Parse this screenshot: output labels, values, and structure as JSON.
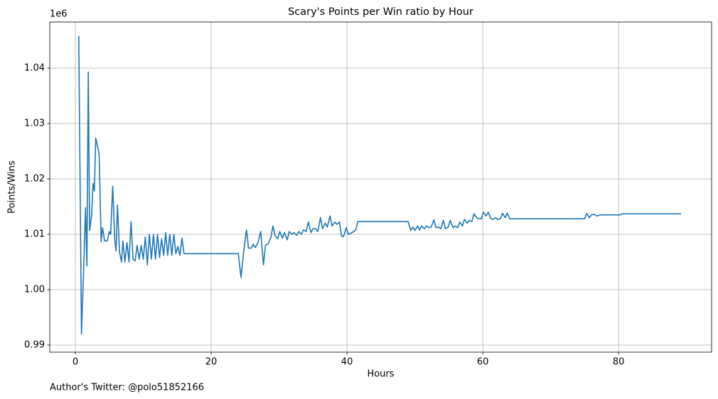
{
  "chart_data": {
    "type": "line",
    "title": "Scary's Points per Win ratio by Hour",
    "x_label": "Hours",
    "y_label": "Points/Wins",
    "y_offset_label": "1e6",
    "footnote": "Author's Twitter: @polo51852166",
    "grid": true,
    "xlim": [
      -3.77,
      93.7
    ],
    "ylim": [
      0.98872,
      1.04833
    ],
    "xticks": [
      0,
      20,
      40,
      60,
      80
    ],
    "yticks": [
      0.99,
      {
        "value": 1.0,
        "label": "1.00"
      },
      1.01,
      1.02,
      1.03,
      1.04
    ],
    "x": [
      0.5,
      0.9,
      1.2,
      1.5,
      1.7,
      1.9,
      2.1,
      2.4,
      2.6,
      2.8,
      3.0,
      3.5,
      3.8,
      4.0,
      4.3,
      4.7,
      5.0,
      5.2,
      5.5,
      5.8,
      6.0,
      6.2,
      6.5,
      6.8,
      7.0,
      7.3,
      7.6,
      7.9,
      8.2,
      8.5,
      8.8,
      9.1,
      9.4,
      9.7,
      10.0,
      10.3,
      10.6,
      10.9,
      11.2,
      11.5,
      11.8,
      12.1,
      12.4,
      12.7,
      13.0,
      13.3,
      13.6,
      13.9,
      14.2,
      14.5,
      14.8,
      15.1,
      15.4,
      15.7,
      16.0,
      24.0,
      24.4,
      24.8,
      25.2,
      25.5,
      25.9,
      26.2,
      26.5,
      26.9,
      27.3,
      27.7,
      28.0,
      28.4,
      28.8,
      29.1,
      29.4,
      29.8,
      30.1,
      30.5,
      30.8,
      31.2,
      31.5,
      31.9,
      32.2,
      32.6,
      32.9,
      33.3,
      33.6,
      34.0,
      34.3,
      34.7,
      35.0,
      35.4,
      35.7,
      36.1,
      36.4,
      36.8,
      37.1,
      37.5,
      37.8,
      38.2,
      38.5,
      38.9,
      39.2,
      39.5,
      39.9,
      40.2,
      40.6,
      41.0,
      41.3,
      41.6,
      49.0,
      49.4,
      49.7,
      50.0,
      50.4,
      50.7,
      51.0,
      51.4,
      51.7,
      52.1,
      52.4,
      52.8,
      53.1,
      53.5,
      53.8,
      54.2,
      54.5,
      54.9,
      55.2,
      55.6,
      55.9,
      56.3,
      56.6,
      57.0,
      57.3,
      57.7,
      58.0,
      58.4,
      58.7,
      59.1,
      59.4,
      59.8,
      60.1,
      60.5,
      60.8,
      61.2,
      61.5,
      61.9,
      62.2,
      62.6,
      62.9,
      63.3,
      63.6,
      64.0,
      75.0,
      75.3,
      75.7,
      76.0,
      76.4,
      76.8,
      77.3,
      80.2,
      80.5,
      89.2
    ],
    "series": [
      {
        "name": "Points/Wins",
        "color": "#1f77b4",
        "values": [
          1.0458,
          0.992,
          1.003,
          1.0148,
          1.0043,
          1.0393,
          1.0107,
          1.0135,
          1.0192,
          1.0178,
          1.0274,
          1.0245,
          1.0087,
          1.0112,
          1.0088,
          1.0088,
          1.0105,
          1.01,
          1.0187,
          1.009,
          1.007,
          1.0153,
          1.0068,
          1.005,
          1.0088,
          1.005,
          1.0085,
          1.005,
          1.0123,
          1.0055,
          1.0052,
          1.008,
          1.0055,
          1.008,
          1.0055,
          1.0095,
          1.0045,
          1.01,
          1.0055,
          1.01,
          1.0055,
          1.01,
          1.0058,
          1.0092,
          1.0062,
          1.0103,
          1.0062,
          1.01,
          1.0062,
          1.01,
          1.0065,
          1.0078,
          1.0062,
          1.0093,
          1.0065,
          1.0065,
          1.0022,
          1.007,
          1.0108,
          1.0075,
          1.0075,
          1.0082,
          1.0076,
          1.0085,
          1.0105,
          1.0045,
          1.008,
          1.0083,
          1.0095,
          1.0115,
          1.0098,
          1.0092,
          1.0105,
          1.0093,
          1.0103,
          1.009,
          1.0105,
          1.01,
          1.0103,
          1.0098,
          1.0105,
          1.01,
          1.0108,
          1.0105,
          1.0122,
          1.0103,
          1.011,
          1.011,
          1.0105,
          1.013,
          1.011,
          1.012,
          1.0113,
          1.0133,
          1.0115,
          1.0122,
          1.0118,
          1.0122,
          1.0097,
          1.0096,
          1.0112,
          1.01,
          1.0102,
          1.0105,
          1.0108,
          1.0123,
          1.0123,
          1.0107,
          1.0113,
          1.0107,
          1.0115,
          1.0108,
          1.0115,
          1.011,
          1.0115,
          1.0112,
          1.0113,
          1.0126,
          1.0112,
          1.0113,
          1.011,
          1.0125,
          1.011,
          1.0113,
          1.0125,
          1.0112,
          1.0115,
          1.0112,
          1.0122,
          1.0115,
          1.0127,
          1.012,
          1.0125,
          1.0123,
          1.0137,
          1.013,
          1.0128,
          1.0128,
          1.014,
          1.0133,
          1.014,
          1.0128,
          1.0127,
          1.013,
          1.0127,
          1.0128,
          1.0138,
          1.013,
          1.0138,
          1.0128,
          1.0128,
          1.0138,
          1.013,
          1.0135,
          1.0136,
          1.0133,
          1.0135,
          1.0135,
          1.0137,
          1.0137
        ]
      }
    ]
  }
}
